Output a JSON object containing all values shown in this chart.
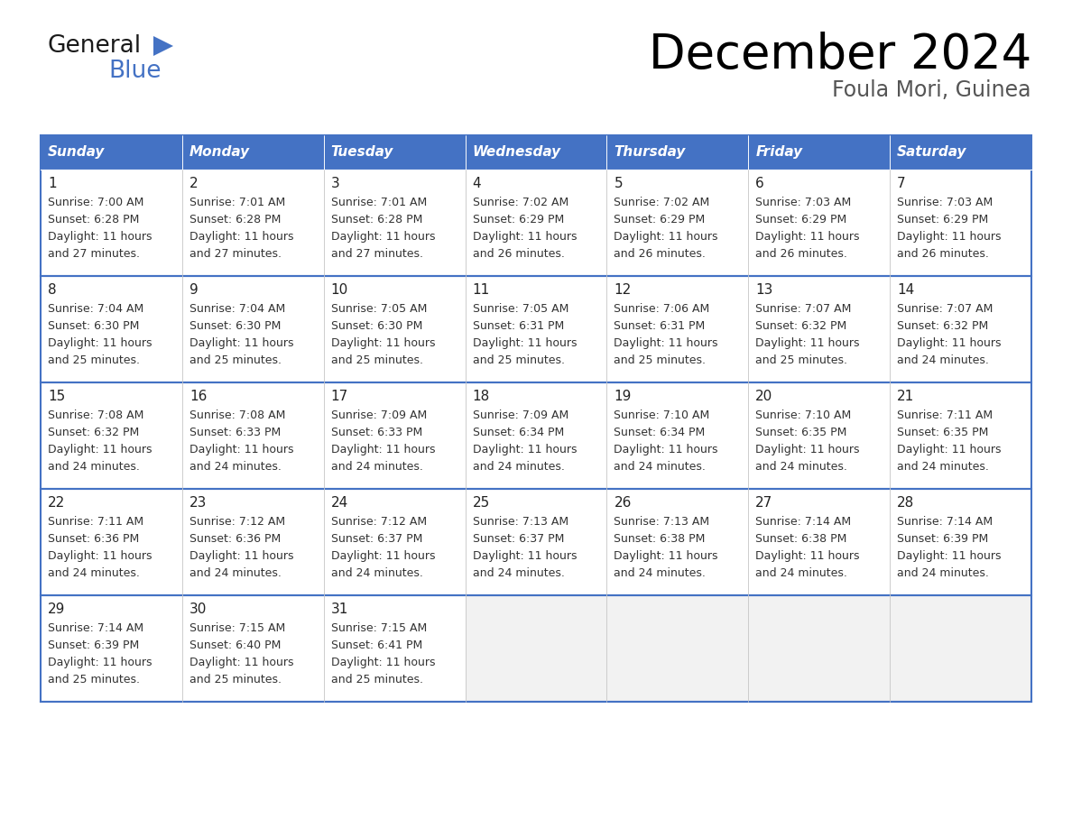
{
  "title": "December 2024",
  "subtitle": "Foula Mori, Guinea",
  "header_bg": "#4472C4",
  "header_text": "#FFFFFF",
  "cell_bg": "#FFFFFF",
  "empty_cell_bg": "#F2F2F2",
  "border_color": "#4472C4",
  "text_color": "#333333",
  "day_number_color": "#222222",
  "days_of_week": [
    "Sunday",
    "Monday",
    "Tuesday",
    "Wednesday",
    "Thursday",
    "Friday",
    "Saturday"
  ],
  "weeks": [
    [
      {
        "day": 1,
        "sunrise": "7:00 AM",
        "sunset": "6:28 PM",
        "daylight_hours": 11,
        "daylight_minutes": 27
      },
      {
        "day": 2,
        "sunrise": "7:01 AM",
        "sunset": "6:28 PM",
        "daylight_hours": 11,
        "daylight_minutes": 27
      },
      {
        "day": 3,
        "sunrise": "7:01 AM",
        "sunset": "6:28 PM",
        "daylight_hours": 11,
        "daylight_minutes": 27
      },
      {
        "day": 4,
        "sunrise": "7:02 AM",
        "sunset": "6:29 PM",
        "daylight_hours": 11,
        "daylight_minutes": 26
      },
      {
        "day": 5,
        "sunrise": "7:02 AM",
        "sunset": "6:29 PM",
        "daylight_hours": 11,
        "daylight_minutes": 26
      },
      {
        "day": 6,
        "sunrise": "7:03 AM",
        "sunset": "6:29 PM",
        "daylight_hours": 11,
        "daylight_minutes": 26
      },
      {
        "day": 7,
        "sunrise": "7:03 AM",
        "sunset": "6:29 PM",
        "daylight_hours": 11,
        "daylight_minutes": 26
      }
    ],
    [
      {
        "day": 8,
        "sunrise": "7:04 AM",
        "sunset": "6:30 PM",
        "daylight_hours": 11,
        "daylight_minutes": 25
      },
      {
        "day": 9,
        "sunrise": "7:04 AM",
        "sunset": "6:30 PM",
        "daylight_hours": 11,
        "daylight_minutes": 25
      },
      {
        "day": 10,
        "sunrise": "7:05 AM",
        "sunset": "6:30 PM",
        "daylight_hours": 11,
        "daylight_minutes": 25
      },
      {
        "day": 11,
        "sunrise": "7:05 AM",
        "sunset": "6:31 PM",
        "daylight_hours": 11,
        "daylight_minutes": 25
      },
      {
        "day": 12,
        "sunrise": "7:06 AM",
        "sunset": "6:31 PM",
        "daylight_hours": 11,
        "daylight_minutes": 25
      },
      {
        "day": 13,
        "sunrise": "7:07 AM",
        "sunset": "6:32 PM",
        "daylight_hours": 11,
        "daylight_minutes": 25
      },
      {
        "day": 14,
        "sunrise": "7:07 AM",
        "sunset": "6:32 PM",
        "daylight_hours": 11,
        "daylight_minutes": 24
      }
    ],
    [
      {
        "day": 15,
        "sunrise": "7:08 AM",
        "sunset": "6:32 PM",
        "daylight_hours": 11,
        "daylight_minutes": 24
      },
      {
        "day": 16,
        "sunrise": "7:08 AM",
        "sunset": "6:33 PM",
        "daylight_hours": 11,
        "daylight_minutes": 24
      },
      {
        "day": 17,
        "sunrise": "7:09 AM",
        "sunset": "6:33 PM",
        "daylight_hours": 11,
        "daylight_minutes": 24
      },
      {
        "day": 18,
        "sunrise": "7:09 AM",
        "sunset": "6:34 PM",
        "daylight_hours": 11,
        "daylight_minutes": 24
      },
      {
        "day": 19,
        "sunrise": "7:10 AM",
        "sunset": "6:34 PM",
        "daylight_hours": 11,
        "daylight_minutes": 24
      },
      {
        "day": 20,
        "sunrise": "7:10 AM",
        "sunset": "6:35 PM",
        "daylight_hours": 11,
        "daylight_minutes": 24
      },
      {
        "day": 21,
        "sunrise": "7:11 AM",
        "sunset": "6:35 PM",
        "daylight_hours": 11,
        "daylight_minutes": 24
      }
    ],
    [
      {
        "day": 22,
        "sunrise": "7:11 AM",
        "sunset": "6:36 PM",
        "daylight_hours": 11,
        "daylight_minutes": 24
      },
      {
        "day": 23,
        "sunrise": "7:12 AM",
        "sunset": "6:36 PM",
        "daylight_hours": 11,
        "daylight_minutes": 24
      },
      {
        "day": 24,
        "sunrise": "7:12 AM",
        "sunset": "6:37 PM",
        "daylight_hours": 11,
        "daylight_minutes": 24
      },
      {
        "day": 25,
        "sunrise": "7:13 AM",
        "sunset": "6:37 PM",
        "daylight_hours": 11,
        "daylight_minutes": 24
      },
      {
        "day": 26,
        "sunrise": "7:13 AM",
        "sunset": "6:38 PM",
        "daylight_hours": 11,
        "daylight_minutes": 24
      },
      {
        "day": 27,
        "sunrise": "7:14 AM",
        "sunset": "6:38 PM",
        "daylight_hours": 11,
        "daylight_minutes": 24
      },
      {
        "day": 28,
        "sunrise": "7:14 AM",
        "sunset": "6:39 PM",
        "daylight_hours": 11,
        "daylight_minutes": 24
      }
    ],
    [
      {
        "day": 29,
        "sunrise": "7:14 AM",
        "sunset": "6:39 PM",
        "daylight_hours": 11,
        "daylight_minutes": 25
      },
      {
        "day": 30,
        "sunrise": "7:15 AM",
        "sunset": "6:40 PM",
        "daylight_hours": 11,
        "daylight_minutes": 25
      },
      {
        "day": 31,
        "sunrise": "7:15 AM",
        "sunset": "6:41 PM",
        "daylight_hours": 11,
        "daylight_minutes": 25
      },
      null,
      null,
      null,
      null
    ]
  ],
  "logo_color_general": "#1a1a1a",
  "logo_color_blue": "#4472C4",
  "title_fontsize": 38,
  "subtitle_fontsize": 17,
  "header_fontsize": 11,
  "day_num_fontsize": 11,
  "cell_fontsize": 9
}
